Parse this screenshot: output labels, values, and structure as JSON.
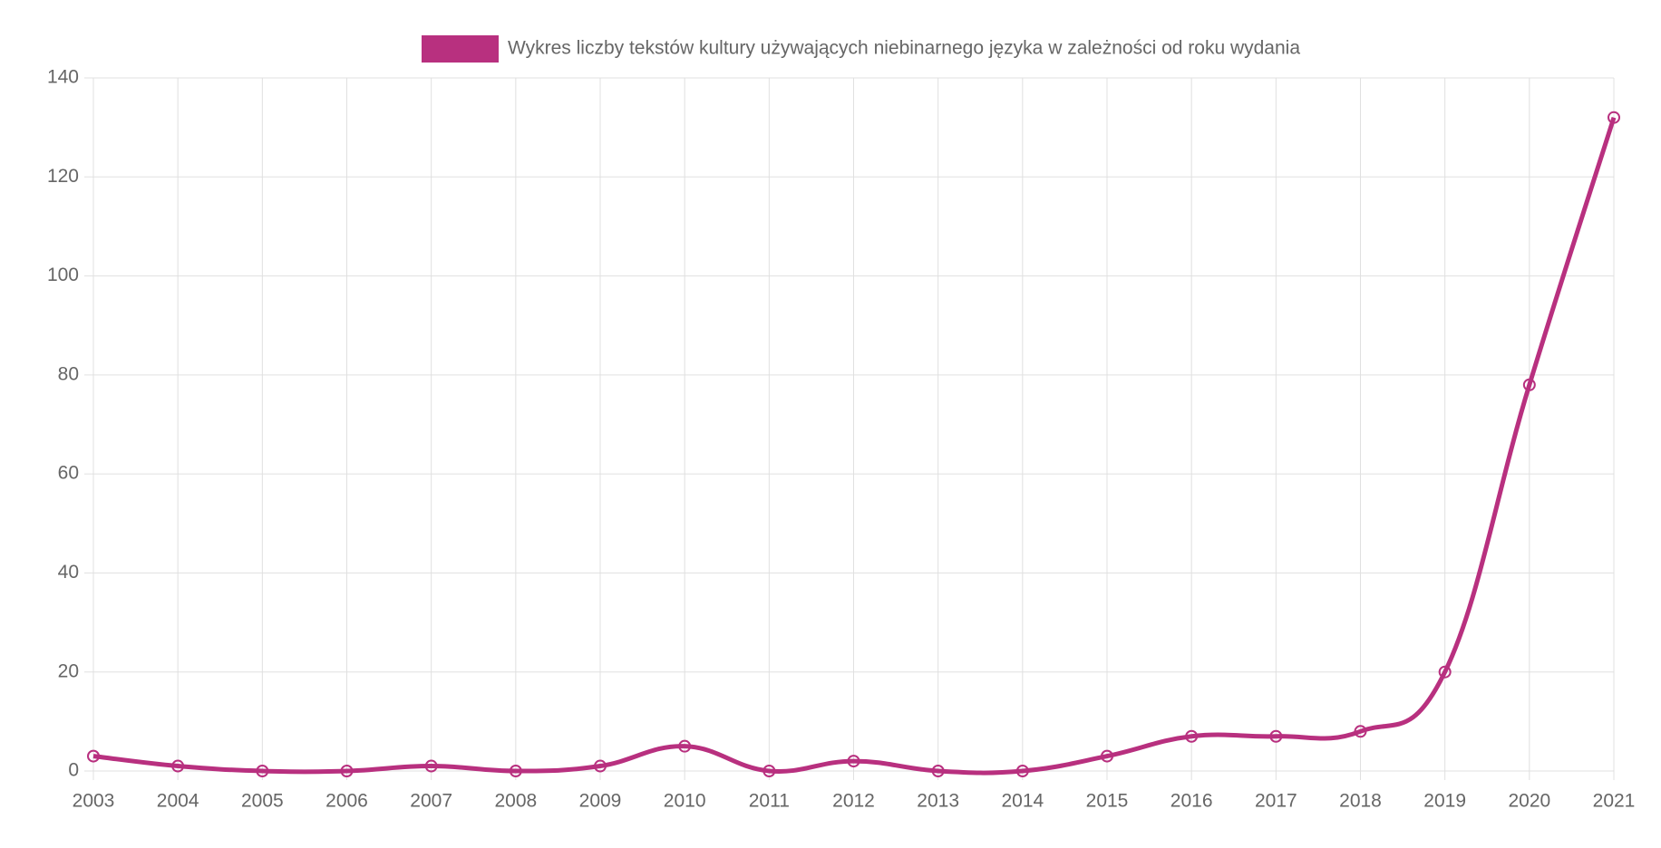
{
  "chart_data": {
    "type": "line",
    "categories": [
      "2003",
      "2004",
      "2005",
      "2006",
      "2007",
      "2008",
      "2009",
      "2010",
      "2011",
      "2012",
      "2013",
      "2014",
      "2015",
      "2016",
      "2017",
      "2018",
      "2019",
      "2020",
      "2021"
    ],
    "series": [
      {
        "name": "Wykres liczby tekstów kultury używających niebinarnego języka w zależności od roku wydania",
        "color": "#b8307f",
        "values": [
          3,
          1,
          0,
          0,
          1,
          0,
          1,
          5,
          0,
          2,
          0,
          0,
          3,
          7,
          7,
          8,
          20,
          78,
          132
        ]
      }
    ],
    "ylim": [
      0,
      140
    ],
    "yticks": [
      0,
      20,
      40,
      60,
      80,
      100,
      120,
      140
    ],
    "grid": true,
    "legend": "top"
  }
}
